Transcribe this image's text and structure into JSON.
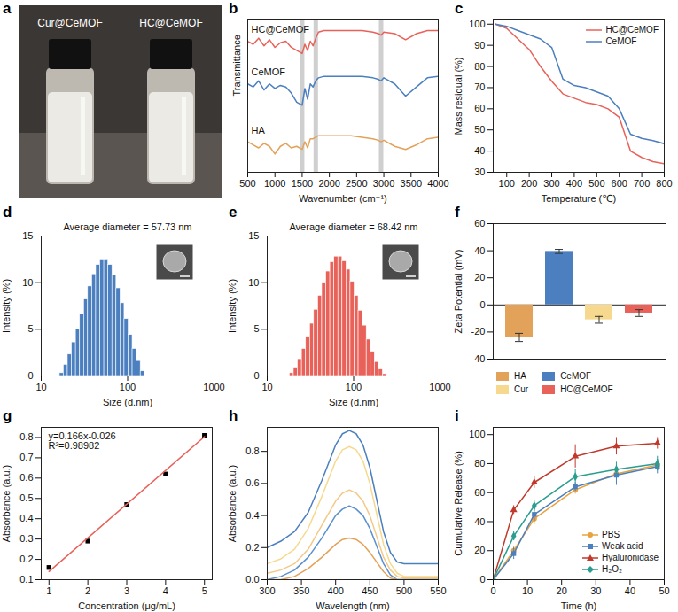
{
  "chart_data": [
    {
      "panel": "a",
      "type": "image",
      "labels": [
        "Cur@CeMOF",
        "HC@CeMOF"
      ]
    },
    {
      "panel": "b",
      "type": "line",
      "x_label": "Wavenumber (cm⁻¹)",
      "y_label": "Transmittance",
      "x": [
        500,
        600,
        700,
        800,
        900,
        1000,
        1100,
        1200,
        1300,
        1400,
        1500,
        1550,
        1600,
        1650,
        1700,
        1750,
        1800,
        1900,
        2000,
        2200,
        2400,
        2600,
        2800,
        2900,
        2950,
        3000,
        3200,
        3400,
        3600,
        3800,
        4000
      ],
      "xlim": [
        500,
        4000
      ],
      "xticks": [
        500,
        1000,
        1500,
        2000,
        2500,
        3000,
        3500,
        4000
      ],
      "ylim": [
        0,
        1
      ],
      "yticks": [],
      "tick_labels": "x",
      "vlines": [
        1500,
        1750,
        2950
      ],
      "series": [
        {
          "name": "HC@CeMOF",
          "color": "#e8625a",
          "values": [
            0.86,
            0.84,
            0.88,
            0.83,
            0.87,
            0.82,
            0.85,
            0.86,
            0.82,
            0.8,
            0.78,
            0.84,
            0.8,
            0.86,
            0.83,
            0.88,
            0.92,
            0.93,
            0.93,
            0.93,
            0.93,
            0.93,
            0.92,
            0.91,
            0.9,
            0.92,
            0.91,
            0.87,
            0.91,
            0.93,
            0.93
          ]
        },
        {
          "name": "CeMOF",
          "color": "#4b7fbf",
          "values": [
            0.58,
            0.56,
            0.6,
            0.54,
            0.58,
            0.55,
            0.57,
            0.56,
            0.52,
            0.46,
            0.44,
            0.55,
            0.48,
            0.58,
            0.56,
            0.6,
            0.62,
            0.63,
            0.63,
            0.63,
            0.63,
            0.63,
            0.62,
            0.61,
            0.6,
            0.62,
            0.58,
            0.5,
            0.56,
            0.62,
            0.63
          ]
        },
        {
          "name": "HA",
          "color": "#e2a25a",
          "values": [
            0.2,
            0.18,
            0.16,
            0.19,
            0.17,
            0.12,
            0.17,
            0.19,
            0.16,
            0.17,
            0.15,
            0.2,
            0.16,
            0.22,
            0.22,
            0.23,
            0.24,
            0.24,
            0.24,
            0.24,
            0.24,
            0.23,
            0.22,
            0.21,
            0.2,
            0.21,
            0.17,
            0.15,
            0.18,
            0.22,
            0.23
          ]
        }
      ]
    },
    {
      "panel": "c",
      "type": "line",
      "x_label": "Temperature (℃)",
      "y_label": "Mass residual (%)",
      "x": [
        50,
        100,
        150,
        200,
        250,
        300,
        350,
        400,
        450,
        500,
        550,
        600,
        650,
        700,
        750,
        800
      ],
      "xlim": [
        40,
        800
      ],
      "xticks": [
        100,
        200,
        300,
        400,
        500,
        600,
        700,
        800
      ],
      "ylim": [
        30,
        102
      ],
      "yticks": [
        30,
        40,
        50,
        60,
        70,
        80,
        90,
        100
      ],
      "legend": "top-right",
      "series": [
        {
          "name": "HC@CeMOF",
          "color": "#e8625a",
          "values": [
            100,
            98,
            93,
            88,
            80,
            73,
            67,
            65,
            63,
            62,
            60,
            56,
            40,
            37,
            35,
            34
          ]
        },
        {
          "name": "CeMOF",
          "color": "#4b7fbf",
          "values": [
            100,
            99,
            97,
            95,
            93,
            89,
            74,
            71,
            70,
            68,
            66,
            60,
            48,
            46,
            45,
            43.5
          ]
        }
      ]
    },
    {
      "panel": "d",
      "type": "histogram",
      "title": "Average diameter = 57.73 nm",
      "x_label": "Size (d.nm)",
      "y_label": "Intensity (%)",
      "log": "x",
      "color": "#4b7fbf",
      "bins": [
        16.4,
        18.2,
        20.3,
        22.6,
        25.2,
        28.1,
        31.3,
        34.8,
        38.8,
        43.2,
        48.1,
        53.6,
        59.7,
        66.5,
        74.1,
        82.5,
        91.9,
        102.4,
        114.0,
        127.0,
        141.5,
        157.6
      ],
      "values": [
        0.3,
        1.2,
        2.3,
        3.6,
        5.0,
        6.6,
        8.2,
        9.6,
        10.9,
        11.9,
        12.5,
        12.5,
        11.9,
        10.8,
        9.4,
        7.8,
        6.1,
        4.4,
        2.9,
        1.6,
        0.5
      ],
      "xlim": [
        10,
        1000
      ],
      "xticks": [
        10,
        100,
        1000
      ],
      "ylim": [
        0,
        15
      ],
      "yticks": [
        0,
        5,
        10,
        15
      ]
    },
    {
      "panel": "e",
      "type": "histogram",
      "title": "Average diameter = 68.42 nm",
      "x_label": "Size (d.nm)",
      "y_label": "Intensity (%)",
      "log": "x",
      "color": "#e8625a",
      "bins": [
        18.2,
        20.3,
        22.6,
        25.2,
        28.1,
        31.3,
        34.8,
        38.8,
        43.2,
        48.1,
        53.6,
        59.7,
        66.5,
        74.1,
        82.5,
        91.9,
        102.4,
        114.0,
        127.0,
        141.5,
        157.6,
        175.5,
        195.5,
        217.8,
        242.6
      ],
      "values": [
        0.3,
        0.9,
        1.8,
        2.9,
        4.2,
        5.6,
        7.1,
        8.6,
        10.0,
        11.2,
        12.2,
        12.8,
        12.8,
        12.3,
        11.4,
        10.1,
        8.6,
        7.0,
        5.4,
        3.9,
        2.6,
        1.5,
        0.7,
        0.2
      ],
      "xlim": [
        10,
        1000
      ],
      "xticks": [
        10,
        100,
        1000
      ],
      "ylim": [
        0,
        15
      ],
      "yticks": [
        0,
        5,
        10,
        15
      ]
    },
    {
      "panel": "f",
      "type": "bar",
      "y_label": "Zeta Potential (mV)",
      "categories": [
        "HA",
        "CeMOF",
        "Cur",
        "HC@CeMOF"
      ],
      "values": [
        -24,
        39.5,
        -11,
        -6
      ],
      "errors": [
        3,
        1.5,
        2.5,
        2.5
      ],
      "colors": [
        "#e2a25a",
        "#4b7fbf",
        "#f6d98e",
        "#e8625a"
      ],
      "ylim": [
        -40,
        60
      ],
      "yticks": [
        -40,
        -20,
        0,
        20,
        40,
        60
      ],
      "tick_labels": "y",
      "legend": "bottom"
    },
    {
      "panel": "g",
      "type": "scatter",
      "x_label": "Concentration (μg/mL)",
      "y_label": "Absorbance (a.u.)",
      "annotations": [
        "y=0.166x-0.026",
        "R²=0.98982"
      ],
      "x": [
        1,
        2,
        3,
        4,
        5
      ],
      "xlim": [
        0.8,
        5.2
      ],
      "xticks": [
        1,
        2,
        3,
        4,
        5
      ],
      "ylim": [
        0.1,
        0.85
      ],
      "yticks": [
        0.1,
        0.2,
        0.3,
        0.4,
        0.5,
        0.6,
        0.7,
        0.8
      ],
      "series": [
        {
          "type": "scatter",
          "marker": "square",
          "color": "#000000",
          "values": [
            0.16,
            0.29,
            0.47,
            0.62,
            0.81
          ]
        },
        {
          "type": "line",
          "color": "#e8625a",
          "x": [
            1,
            5
          ],
          "values": [
            0.14,
            0.804
          ]
        }
      ]
    },
    {
      "panel": "h",
      "type": "line",
      "x_label": "Wavelength (nm)",
      "y_label": "Absorbance (a.u.)",
      "x": [
        300,
        320,
        340,
        360,
        380,
        400,
        410,
        420,
        430,
        440,
        450,
        460,
        470,
        480,
        490,
        500,
        520,
        550
      ],
      "xlim": [
        300,
        550
      ],
      "xticks": [
        300,
        350,
        400,
        450,
        500,
        550
      ],
      "ylim": [
        0,
        0.95
      ],
      "yticks": [
        {
          "value": 0,
          "label": "0.0"
        },
        0.2,
        0.4,
        0.6,
        0.8
      ],
      "series": [
        {
          "color": "#4b7fbf",
          "values": [
            0.2,
            0.24,
            0.3,
            0.42,
            0.62,
            0.84,
            0.91,
            0.93,
            0.91,
            0.84,
            0.7,
            0.5,
            0.3,
            0.17,
            0.11,
            0.1,
            0.1,
            0.1
          ]
        },
        {
          "color": "#f6d98e",
          "values": [
            0.1,
            0.13,
            0.19,
            0.32,
            0.52,
            0.74,
            0.81,
            0.83,
            0.81,
            0.74,
            0.6,
            0.41,
            0.22,
            0.1,
            0.04,
            0.02,
            0.02,
            0.02
          ]
        },
        {
          "color": "#f3c987",
          "values": [
            0.04,
            0.06,
            0.1,
            0.19,
            0.34,
            0.49,
            0.54,
            0.56,
            0.54,
            0.49,
            0.4,
            0.27,
            0.14,
            0.06,
            0.02,
            0.01,
            0.01,
            0.01
          ]
        },
        {
          "color": "#5a8fd0",
          "values": [
            0.0,
            0.02,
            0.06,
            0.14,
            0.26,
            0.4,
            0.44,
            0.46,
            0.44,
            0.4,
            0.32,
            0.21,
            0.1,
            0.03,
            0.0,
            0.0,
            0.0,
            0.0
          ]
        },
        {
          "color": "#e2a25a",
          "values": [
            0.0,
            0.0,
            0.02,
            0.07,
            0.14,
            0.22,
            0.25,
            0.26,
            0.25,
            0.22,
            0.17,
            0.11,
            0.05,
            0.01,
            0.0,
            0.0,
            0.0,
            0.0
          ]
        }
      ]
    },
    {
      "panel": "i",
      "type": "line",
      "x_label": "Time (h)",
      "y_label": "Cumulative Release (%)",
      "x": [
        0,
        6,
        12,
        24,
        36,
        48
      ],
      "xlim": [
        0,
        50
      ],
      "xticks": [
        0,
        10,
        20,
        30,
        40,
        50
      ],
      "ylim": [
        0,
        105
      ],
      "yticks": [
        0,
        20,
        40,
        60,
        80,
        100
      ],
      "legend": "bottom-right",
      "series": [
        {
          "name": "PBS",
          "color": "#e8a33d",
          "marker": "circle",
          "values": [
            0,
            20,
            42,
            62,
            73,
            79
          ],
          "errors": [
            0,
            3,
            4,
            3,
            3,
            4
          ]
        },
        {
          "name": "Weak acid",
          "color": "#4b7fbf",
          "marker": "square",
          "values": [
            0,
            18,
            45,
            64,
            72,
            78
          ],
          "errors": [
            0,
            4,
            5,
            3,
            7,
            5
          ]
        },
        {
          "name": "Hyaluronidase",
          "color": "#c0392b",
          "marker": "triangle",
          "values": [
            0,
            48,
            67,
            85,
            92,
            94
          ],
          "errors": [
            0,
            3,
            4,
            8,
            6,
            4
          ]
        },
        {
          "name": "H₂O₂",
          "color": "#2a9d8f",
          "marker": "diamond",
          "values": [
            0,
            30,
            51,
            71,
            76,
            80
          ],
          "errors": [
            0,
            3,
            4,
            5,
            5,
            5
          ]
        }
      ]
    }
  ]
}
